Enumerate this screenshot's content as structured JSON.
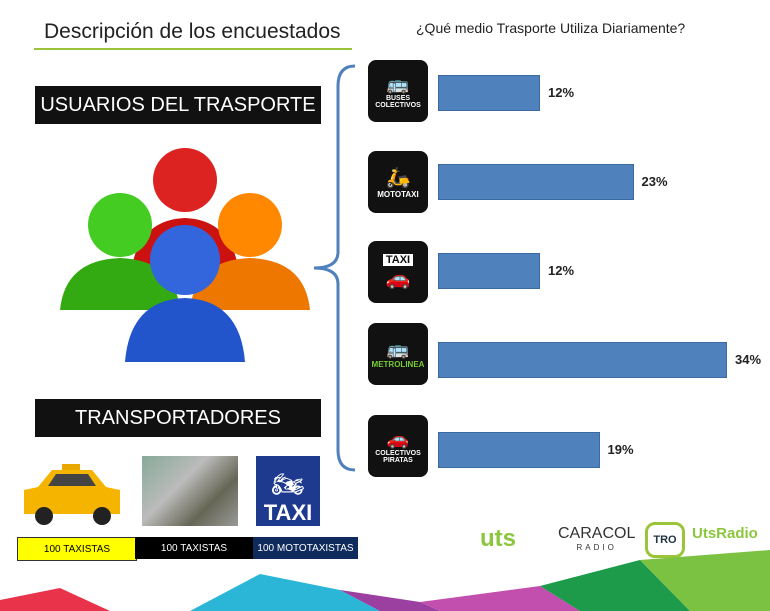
{
  "title": "Descripción de los encuestados",
  "users_label": "USUARIOS DEL TRASPORTE",
  "transporters_label": "TRANSPORTADORES",
  "chips": [
    "100 TAXISTAS",
    "100 TAXISTAS",
    "100 MOTOTAXISTAS"
  ],
  "taxi_sign": "TAXI",
  "logos": [
    "uts",
    "CARACOL",
    "RADIO",
    "TRO",
    "UtsRadio"
  ],
  "colors": {
    "bar": "#4f81bd",
    "accent": "#9bc43a"
  },
  "chart_data": {
    "type": "bar",
    "orientation": "horizontal",
    "title": "¿Qué medio Trasporte Utiliza Diariamente?",
    "categories": [
      "BUSES COLECTIVOS",
      "MOTOTAXI",
      "TAXI",
      "METROLINEA",
      "COLECTIVOS PIRATAS"
    ],
    "values": [
      12,
      23,
      12,
      34,
      19
    ],
    "labels": [
      "12%",
      "23%",
      "12%",
      "34%",
      "19%"
    ],
    "xlim": [
      0,
      40
    ]
  }
}
